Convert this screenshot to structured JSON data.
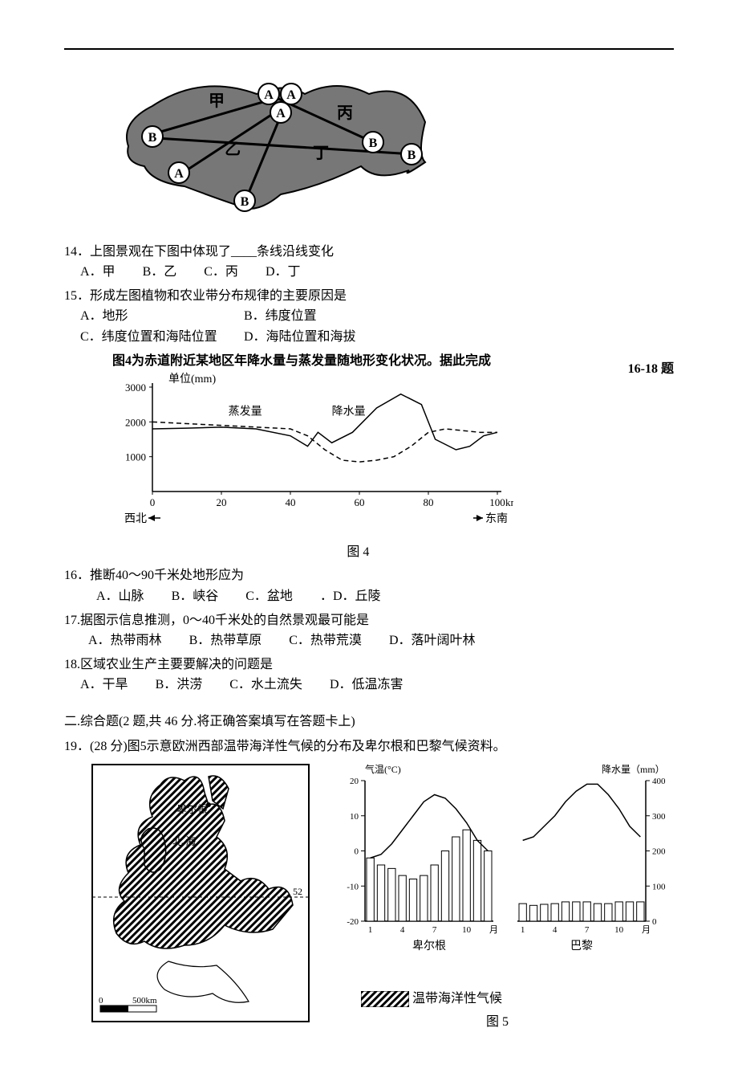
{
  "map1": {
    "labels": {
      "jia": "甲",
      "yi": "乙",
      "bing": "丙",
      "ding": "丁",
      "A": "A",
      "B": "B"
    }
  },
  "q14": {
    "text": "14．上图景观在下图中体现了____条线沿线变化",
    "opts": {
      "A": "A．甲",
      "B": "B．乙",
      "C": "C．丙",
      "D": "D．丁"
    }
  },
  "q15": {
    "text": "15．形成左图植物和农业带分布规律的主要原因是",
    "opts": {
      "A": "A．地形",
      "B": "B．纬度位置",
      "C": "C．纬度位置和海陆位置",
      "D": "D．海陆位置和海拔"
    }
  },
  "fig4": {
    "intro": "图4为赤道附近某地区年降水量与蒸发量随地形变化状况。据此完成",
    "intro_side": "16-18 题",
    "unit": "单位(mm)",
    "yticks": [
      "1000",
      "2000",
      "3000"
    ],
    "yvals": [
      1000,
      2000,
      3000
    ],
    "ymax": 3000,
    "xticks": [
      "0",
      "20",
      "40",
      "60",
      "80",
      "100"
    ],
    "xvals": [
      0,
      20,
      40,
      60,
      80,
      100
    ],
    "xlabel_right": "km",
    "leftlabel": "西北",
    "rightlabel": "东南",
    "evap_label": "蒸发量",
    "precip_label": "降水量",
    "caption": "图 4",
    "evap_line": [
      [
        0,
        2000
      ],
      [
        10,
        1950
      ],
      [
        20,
        1900
      ],
      [
        30,
        1850
      ],
      [
        40,
        1800
      ],
      [
        45,
        1600
      ],
      [
        50,
        1200
      ],
      [
        55,
        900
      ],
      [
        60,
        850
      ],
      [
        65,
        900
      ],
      [
        70,
        1000
      ],
      [
        75,
        1300
      ],
      [
        80,
        1700
      ],
      [
        85,
        1800
      ],
      [
        90,
        1750
      ],
      [
        95,
        1700
      ],
      [
        100,
        1700
      ]
    ],
    "precip_line": [
      [
        0,
        1800
      ],
      [
        10,
        1820
      ],
      [
        20,
        1850
      ],
      [
        30,
        1800
      ],
      [
        40,
        1600
      ],
      [
        45,
        1300
      ],
      [
        48,
        1700
      ],
      [
        52,
        1400
      ],
      [
        58,
        1700
      ],
      [
        65,
        2400
      ],
      [
        72,
        2800
      ],
      [
        78,
        2500
      ],
      [
        82,
        1500
      ],
      [
        88,
        1200
      ],
      [
        92,
        1300
      ],
      [
        96,
        1600
      ],
      [
        100,
        1700
      ]
    ],
    "colors": {
      "axis": "#000000",
      "evap": "#000000",
      "precip": "#000000",
      "bg": "#ffffff"
    },
    "dash": "6,4"
  },
  "q16": {
    "text": "16．推断40～90千米处地形应为",
    "opts": {
      "A": "A．山脉",
      "B": "B．峡谷",
      "C": "C．盆地",
      "D": "．D．丘陵"
    }
  },
  "q17": {
    "text": "17.据图示信息推测，0～40千米处的自然景观最可能是",
    "opts": {
      "A": "A．热带雨林",
      "B": "B．热带草原",
      "C": "C．热带荒漠",
      "D": "D．落叶阔叶林"
    }
  },
  "q18": {
    "text": "18.区域农业生产主要要解决的问题是",
    "opts": {
      "A": "A．干旱",
      "B": "B．洪涝",
      "C": "C．水土流失",
      "D": "D．低温冻害"
    }
  },
  "section2": "二.综合题(2 题,共 46 分.将正确答案填写在答题卡上)",
  "q19": {
    "text": "19．(28 分)图5示意欧洲西部温带海洋性气候的分布及卑尔根和巴黎气候资料。"
  },
  "fig5": {
    "map": {
      "city": "卑尔根",
      "sea": "北 海",
      "lat": "52",
      "scale_zero": "0",
      "scale_full": "500km"
    },
    "climate": {
      "ylabel_temp": "气温(°C)",
      "ylabel_precip": "降水量（mm）",
      "temp_ticks": [
        "-20",
        "-10",
        "0",
        "10",
        "20"
      ],
      "temp_vals": [
        -20,
        -10,
        0,
        10,
        20
      ],
      "precip_ticks": [
        "0",
        "100",
        "200",
        "300",
        "400"
      ],
      "precip_vals": [
        0,
        100,
        200,
        300,
        400
      ],
      "xticks": [
        "1",
        "4",
        "7",
        "10",
        "月"
      ],
      "left_city": "卑尔根",
      "right_city": "巴黎",
      "bergen_bars": [
        180,
        160,
        150,
        130,
        120,
        130,
        160,
        200,
        240,
        260,
        230,
        200
      ],
      "paris_bars": [
        50,
        45,
        48,
        50,
        55,
        55,
        55,
        50,
        50,
        55,
        55,
        55
      ],
      "bergen_temp": [
        -2,
        -1,
        2,
        6,
        10,
        14,
        16,
        15,
        12,
        8,
        3,
        0
      ],
      "paris_temp": [
        3,
        4,
        7,
        10,
        14,
        17,
        19,
        19,
        16,
        12,
        7,
        4
      ],
      "bar_color": "#ffffff",
      "bar_stroke": "#000000",
      "line_color": "#000000"
    },
    "legend": "温带海洋性气候",
    "caption": "图 5"
  }
}
